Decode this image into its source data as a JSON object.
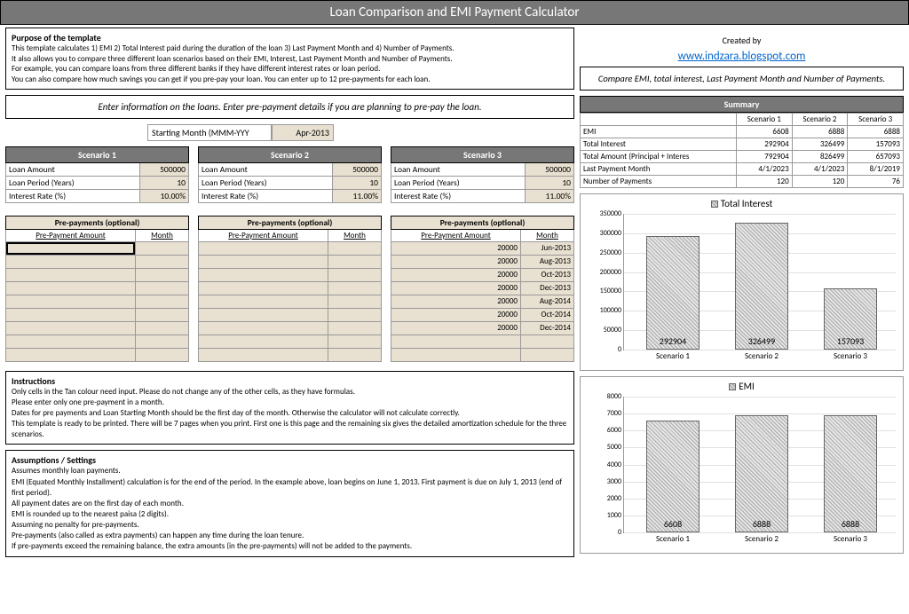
{
  "title": "Loan Comparison and EMI Payment Calculator",
  "created_by": "Created by",
  "link": "www.indzara.blogspot.com",
  "purpose": {
    "heading": "Purpose of the template",
    "lines": [
      "This template calculates 1) EMI 2) Total Interest paid during the duration of the loan 3) Last Payment Month and 4) Number of Payments.",
      "It also allows you to compare three different loan scenarios based on their EMI, Interest, Last Payment Month and Number of Payments.",
      "For example, you can compare loans from three different banks if they have different interest rates or loan period.",
      "You can also compare how much savings you can get if you pre-pay your loan. You can enter up to 12 pre-payments for each loan."
    ]
  },
  "enter_info": "Enter information on the loans. Enter pre-payment details if you are planning to pre-pay the loan.",
  "compare_info": "Compare EMI, total interest, Last Payment Month and Number of Payments.",
  "starting_month_label": "Starting Month (MMM-YYY",
  "starting_month_value": "Apr-2013",
  "scenario_labels": {
    "loan_amount": "Loan Amount",
    "loan_period": "Loan Period (Years)",
    "interest_rate": "Interest Rate (%)"
  },
  "scenarios": [
    {
      "title": "Scenario 1",
      "loan_amount": "500000",
      "loan_period": "10",
      "interest_rate": "10.00%"
    },
    {
      "title": "Scenario 2",
      "loan_amount": "500000",
      "loan_period": "10",
      "interest_rate": "11.00%"
    },
    {
      "title": "Scenario 3",
      "loan_amount": "500000",
      "loan_period": "10",
      "interest_rate": "11.00%"
    }
  ],
  "prepay_header": "Pre-payments (optional)",
  "prepay_col1": "Pre-Payment Amount",
  "prepay_col2": "Month",
  "prepayments": [
    [],
    [],
    [
      {
        "amount": "20000",
        "month": "Jun-2013"
      },
      {
        "amount": "20000",
        "month": "Aug-2013"
      },
      {
        "amount": "20000",
        "month": "Oct-2013"
      },
      {
        "amount": "20000",
        "month": "Dec-2013"
      },
      {
        "amount": "20000",
        "month": "Aug-2014"
      },
      {
        "amount": "20000",
        "month": "Oct-2014"
      },
      {
        "amount": "20000",
        "month": "Dec-2014"
      }
    ]
  ],
  "prepay_rows": 9,
  "instructions": {
    "heading": "Instructions",
    "lines": [
      "Only cells in the Tan colour need input. Please do not change any of the other cells, as they have formulas.",
      "Please enter only one pre-payment in a  month.",
      "Dates for pre payments and Loan Starting Month should be the first day of the month. Otherwise the calculator will not calculate correctly.",
      "This template is ready to be printed. There will be 7 pages when you print. First one is this page and the remaining six gives the detailed amortization schedule for the three scenarios."
    ]
  },
  "assumptions": {
    "heading": "Assumptions / Settings",
    "lines": [
      "Assumes monthly loan payments.",
      "EMI (Equated Monthly Installment) calculation is for the end of the period. In the example above, loan begins on June 1, 2013. First payment is due on July 1, 2013 (end of first period).",
      "All payment dates are on the first day of each month.",
      "EMI is rounded up to the nearest paisa (2 digits).",
      "Assuming no penalty for pre-payments.",
      "Pre-payments (also called as extra payments) can happen any time during the loan tenure.",
      "If pre-payments exceed the remaining balance, the extra amounts (in the pre-payments) will not be added to the payments."
    ]
  },
  "summary": {
    "heading": "Summary",
    "cols": [
      "Scenario 1",
      "Scenario 2",
      "Scenario 3"
    ],
    "rows": [
      {
        "label": "EMI",
        "vals": [
          "6608",
          "6888",
          "6888"
        ]
      },
      {
        "label": "Total Interest",
        "vals": [
          "292904",
          "326499",
          "157093"
        ]
      },
      {
        "label": "Total Amount (Principal + Interes",
        "vals": [
          "792904",
          "826499",
          "657093"
        ]
      },
      {
        "label": "Last Payment Month",
        "vals": [
          "4/1/2023",
          "4/1/2023",
          "8/1/2019"
        ]
      },
      {
        "label": "Number of Payments",
        "vals": [
          "120",
          "120",
          "76"
        ]
      }
    ]
  },
  "chart_interest": {
    "title": "Total Interest",
    "categories": [
      "Scenario 1",
      "Scenario 2",
      "Scenario 3"
    ],
    "values": [
      292904,
      326499,
      157093
    ],
    "ymax": 350000,
    "ystep": 50000
  },
  "chart_emi": {
    "title": "EMI",
    "categories": [
      "Scenario 1",
      "Scenario 2",
      "Scenario 3"
    ],
    "values": [
      6608,
      6888,
      6888
    ],
    "ymax": 8000,
    "ystep": 1000
  },
  "colors": {
    "header_bg": "#777777",
    "input_bg": "#e8e0d0",
    "border": "#999999",
    "link": "#0066cc"
  }
}
